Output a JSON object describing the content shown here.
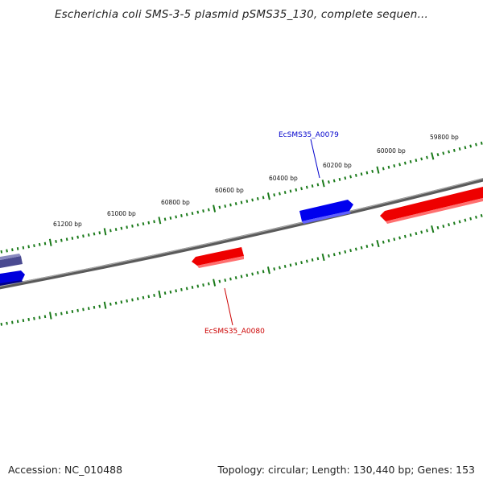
{
  "title": "Escherichia coli SMS-3-5 plasmid pSMS35_130, complete sequen...",
  "footer": {
    "accession": "Accession: NC_010488",
    "summary": "Topology: circular; Length: 130,440 bp; Genes: 153"
  },
  "scale": {
    "tick_labels": [
      "59800 bp",
      "60000 bp",
      "60200 bp",
      "60400 bp",
      "60600 bp",
      "60800 bp",
      "61000 bp",
      "61200 bp"
    ]
  },
  "genes": [
    {
      "name": "EcSMS35_A0079",
      "strand": "forward",
      "color": "#0000cc"
    },
    {
      "name": "EcSMS35_A0080",
      "strand": "reverse",
      "color": "#cc0000"
    }
  ],
  "colors": {
    "backbone": "#7a7a7a",
    "tick": "#1a7a1a",
    "forward_gene": "#0000ee",
    "reverse_gene": "#ee0000",
    "other_gene": "#4a4a8a"
  }
}
